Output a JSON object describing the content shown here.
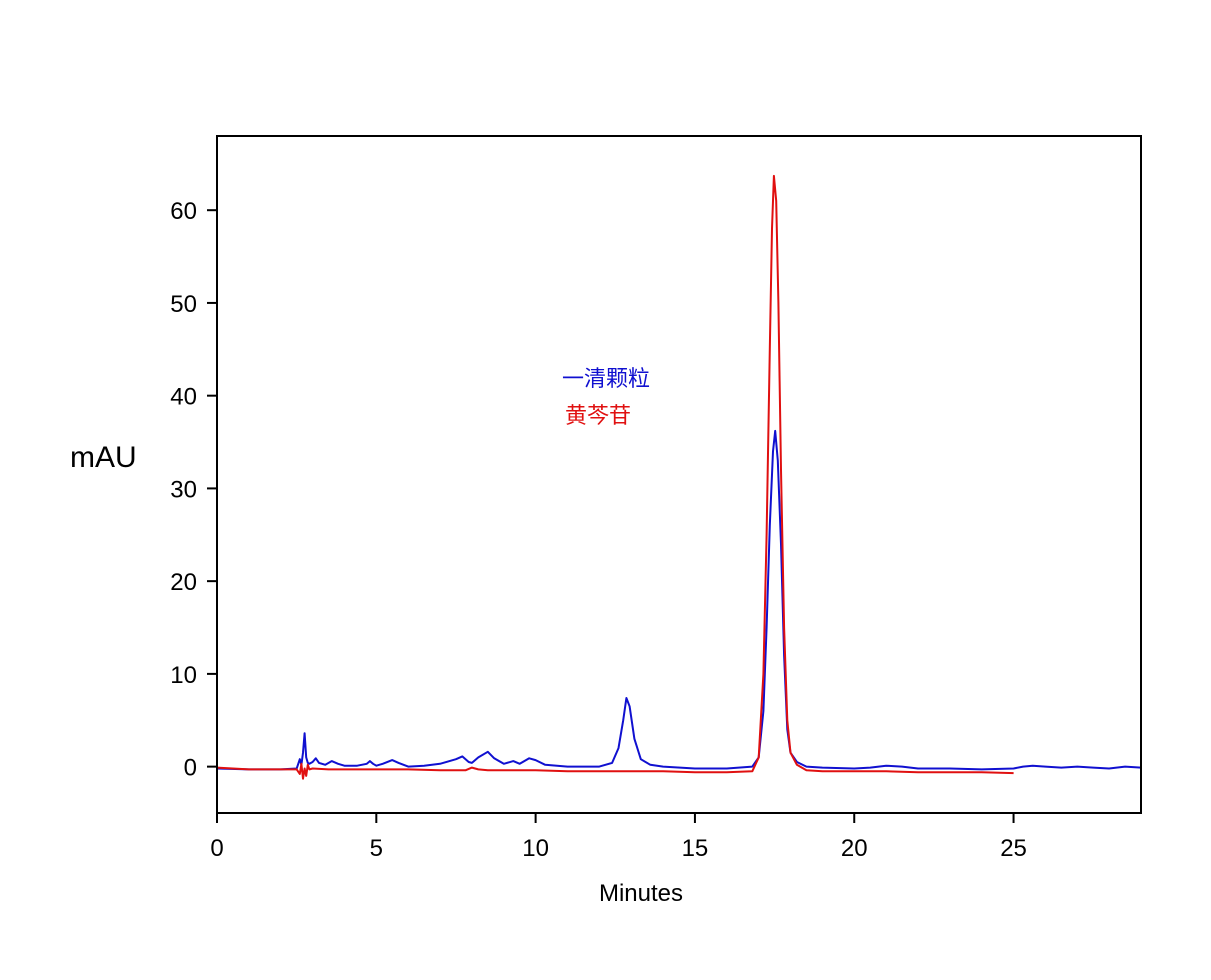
{
  "chart_data": {
    "type": "line",
    "title": "",
    "xlabel": "Minutes",
    "ylabel": "mAU",
    "xlim": [
      0,
      29
    ],
    "ylim": [
      -5,
      68
    ],
    "x_ticks": [
      0,
      5,
      10,
      15,
      20,
      25
    ],
    "y_ticks": [
      0,
      10,
      20,
      30,
      40,
      50,
      60
    ],
    "grid": false,
    "legend_position": "center",
    "series": [
      {
        "name": "一清颗粒",
        "color": "#1010d0",
        "x": [
          0.0,
          1.0,
          2.0,
          2.5,
          2.6,
          2.65,
          2.7,
          2.75,
          2.8,
          2.85,
          2.9,
          3.0,
          3.1,
          3.2,
          3.4,
          3.6,
          3.8,
          4.0,
          4.4,
          4.7,
          4.8,
          4.9,
          5.0,
          5.2,
          5.5,
          5.7,
          6.0,
          6.5,
          7.0,
          7.5,
          7.7,
          7.9,
          8.0,
          8.2,
          8.5,
          8.7,
          9.0,
          9.3,
          9.5,
          9.8,
          10.0,
          10.3,
          11.0,
          12.0,
          12.4,
          12.6,
          12.75,
          12.85,
          12.95,
          13.1,
          13.3,
          13.6,
          14.0,
          15.0,
          16.0,
          16.8,
          17.0,
          17.15,
          17.25,
          17.35,
          17.45,
          17.52,
          17.6,
          17.7,
          17.8,
          17.9,
          18.0,
          18.2,
          18.5,
          19.0,
          20.0,
          20.5,
          21.0,
          21.5,
          22.0,
          23.0,
          24.0,
          25.0,
          25.3,
          25.6,
          26.0,
          26.5,
          27.0,
          27.5,
          28.0,
          28.5,
          29.0
        ],
        "y": [
          -0.2,
          -0.3,
          -0.3,
          -0.2,
          0.8,
          0.2,
          1.5,
          3.6,
          1.0,
          0.4,
          0.3,
          0.5,
          0.9,
          0.4,
          0.2,
          0.6,
          0.3,
          0.1,
          0.1,
          0.3,
          0.6,
          0.3,
          0.1,
          0.3,
          0.7,
          0.4,
          0.0,
          0.1,
          0.3,
          0.8,
          1.1,
          0.5,
          0.4,
          1.0,
          1.6,
          0.9,
          0.3,
          0.6,
          0.3,
          0.9,
          0.7,
          0.2,
          0.0,
          0.0,
          0.4,
          2.0,
          5.0,
          7.4,
          6.5,
          3.0,
          0.8,
          0.2,
          0.0,
          -0.2,
          -0.2,
          0.0,
          1.0,
          6.0,
          15.0,
          26.0,
          34.0,
          36.2,
          33.0,
          24.0,
          12.0,
          4.0,
          1.5,
          0.5,
          0.0,
          -0.1,
          -0.2,
          -0.1,
          0.1,
          0.0,
          -0.2,
          -0.2,
          -0.3,
          -0.2,
          0.0,
          0.1,
          0.0,
          -0.1,
          0.0,
          -0.1,
          -0.2,
          0.0,
          -0.1
        ]
      },
      {
        "name": "黄芩苷",
        "color": "#e01010",
        "x": [
          0.0,
          1.0,
          2.0,
          2.5,
          2.6,
          2.65,
          2.7,
          2.75,
          2.8,
          2.85,
          2.9,
          3.0,
          3.5,
          4.0,
          5.0,
          6.0,
          7.0,
          7.8,
          8.0,
          8.2,
          8.5,
          9.0,
          10.0,
          11.0,
          12.0,
          13.0,
          14.0,
          15.0,
          16.0,
          16.8,
          17.0,
          17.15,
          17.25,
          17.35,
          17.42,
          17.48,
          17.55,
          17.62,
          17.7,
          17.8,
          17.9,
          18.0,
          18.2,
          18.5,
          19.0,
          20.0,
          21.0,
          22.0,
          23.0,
          24.0,
          25.0
        ],
        "y": [
          -0.1,
          -0.3,
          -0.3,
          -0.3,
          -0.8,
          0.3,
          -1.3,
          -0.2,
          -1.0,
          0.2,
          -0.3,
          -0.2,
          -0.3,
          -0.3,
          -0.3,
          -0.3,
          -0.4,
          -0.4,
          -0.1,
          -0.3,
          -0.4,
          -0.4,
          -0.4,
          -0.5,
          -0.5,
          -0.5,
          -0.5,
          -0.6,
          -0.6,
          -0.5,
          1.0,
          10.0,
          25.0,
          45.0,
          58.0,
          63.7,
          61.0,
          50.0,
          32.0,
          15.0,
          5.0,
          1.5,
          0.2,
          -0.4,
          -0.5,
          -0.5,
          -0.5,
          -0.6,
          -0.6,
          -0.6,
          -0.7
        ]
      }
    ]
  }
}
